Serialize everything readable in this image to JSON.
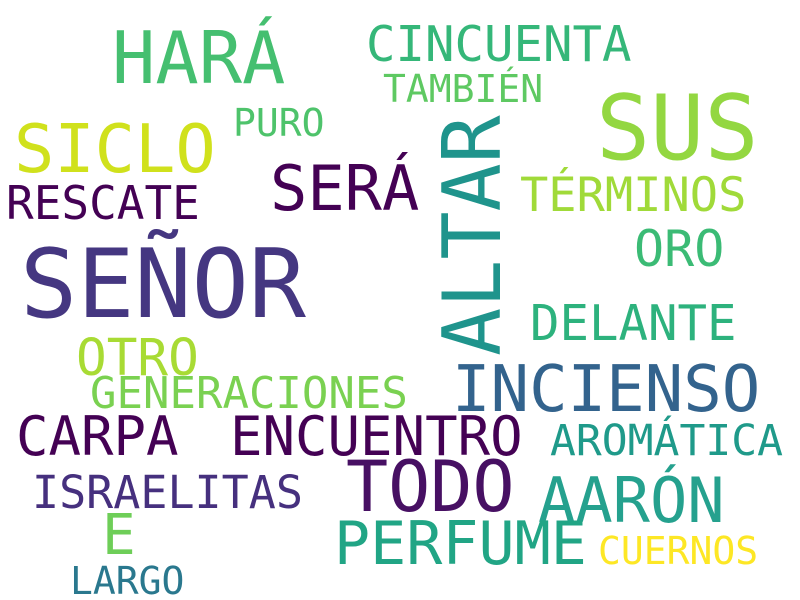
{
  "words": {
    "senor": {
      "text": "SEÑOR",
      "color": "#453781"
    },
    "altar": {
      "text": "ALTAR",
      "color": "#1f948c"
    },
    "sus": {
      "text": "SUS",
      "color": "#93d741"
    },
    "hara": {
      "text": "HARÁ",
      "color": "#45bf70"
    },
    "siclo": {
      "text": "SICLO",
      "color": "#d0e11c"
    },
    "sera": {
      "text": "SERÁ",
      "color": "#440154"
    },
    "incienso": {
      "text": "INCIENSO",
      "color": "#33638d"
    },
    "todo": {
      "text": "TODO",
      "color": "#471063"
    },
    "carpa": {
      "text": "CARPA",
      "color": "#440154"
    },
    "encuentro": {
      "text": "ENCUENTRO",
      "color": "#440154"
    },
    "cincuenta": {
      "text": "CINCUENTA",
      "color": "#35b779"
    },
    "terminos": {
      "text": "TÉRMINOS",
      "color": "#a0da39"
    },
    "rescate": {
      "text": "RESCATE",
      "color": "#440154"
    },
    "delante": {
      "text": "DELANTE",
      "color": "#2db27d"
    },
    "aaron": {
      "text": "AARÓN",
      "color": "#25a18e"
    },
    "perfume": {
      "text": "PERFUME",
      "color": "#21a585"
    },
    "generaciones": {
      "text": "GENERACIONES",
      "color": "#7ad151"
    },
    "israelitas": {
      "text": "ISRAELITAS",
      "color": "#46307e"
    },
    "aromatica": {
      "text": "AROMÁTICA",
      "color": "#1f9a8a"
    },
    "oro": {
      "text": "ORO",
      "color": "#3bbb75"
    },
    "otro": {
      "text": "OTRO",
      "color": "#a8db34"
    },
    "tambien": {
      "text": "TAMBIÉN",
      "color": "#5ec962"
    },
    "puro": {
      "text": "PURO",
      "color": "#4ec36b"
    },
    "e": {
      "text": "E",
      "color": "#6ece58"
    },
    "cuernos": {
      "text": "CUERNOS",
      "color": "#fde725"
    },
    "largo": {
      "text": "LARGO",
      "color": "#2a788e"
    }
  }
}
